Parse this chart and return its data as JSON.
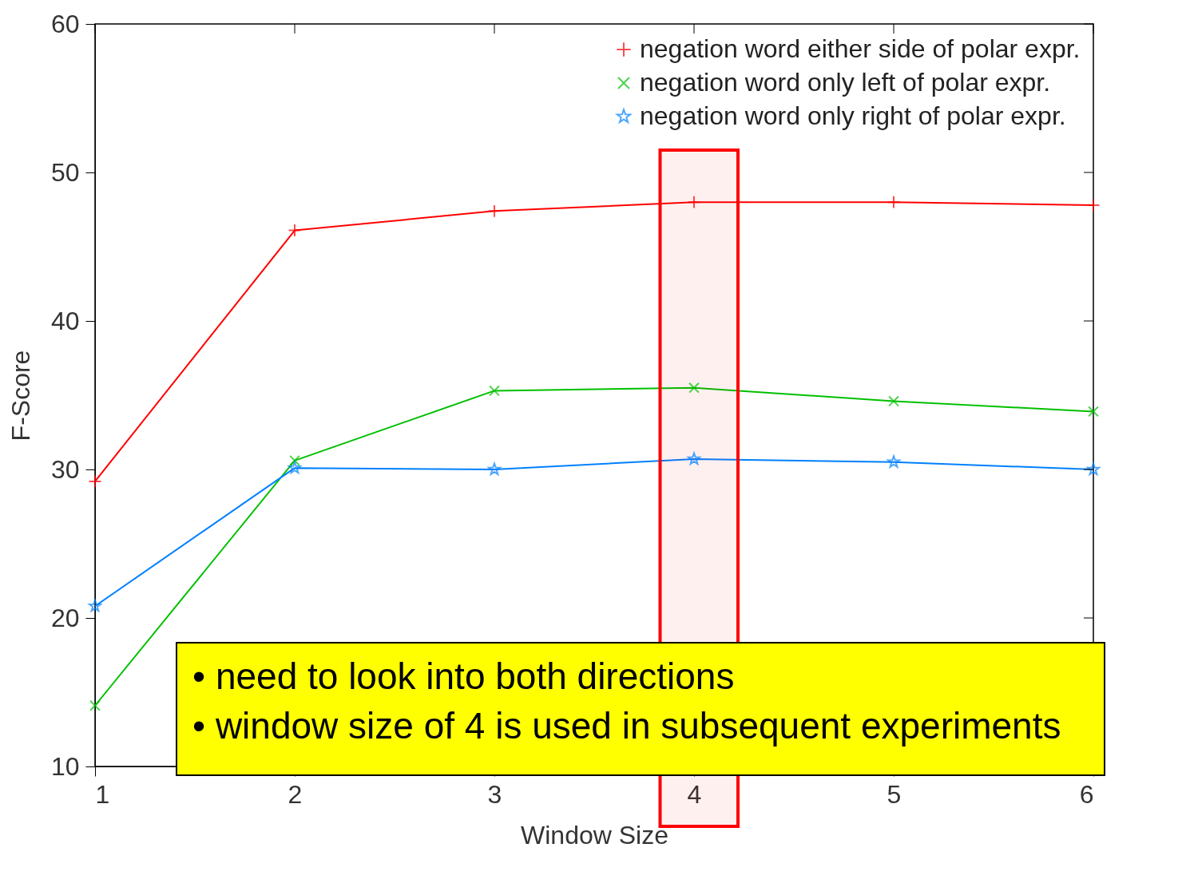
{
  "chart_data": {
    "type": "line",
    "xlabel": "Window Size",
    "ylabel": "F-Score",
    "x": [
      1,
      2,
      3,
      4,
      5,
      6
    ],
    "series": [
      {
        "name": "negation word either side of polar expr.",
        "color": "#ff0000",
        "marker": "cross",
        "values": [
          29.2,
          46.1,
          47.4,
          48.0,
          48.0,
          47.8
        ]
      },
      {
        "name": "negation word only left of polar expr.",
        "color": "#00c000",
        "marker": "x",
        "values": [
          14.1,
          30.6,
          35.3,
          35.5,
          34.6,
          33.9
        ]
      },
      {
        "name": "negation word only right of polar expr.",
        "color": "#0080ff",
        "marker": "star",
        "values": [
          20.8,
          30.1,
          30.0,
          30.7,
          30.5,
          30.0
        ]
      }
    ],
    "xlim": [
      1,
      6
    ],
    "xticks": [
      1,
      2,
      3,
      4,
      5,
      6
    ],
    "ylim": [
      10,
      60
    ],
    "yticks": [
      10,
      20,
      30,
      40,
      50,
      60
    ],
    "grid": false,
    "legend": "top right",
    "bands": [
      {
        "axis": "x",
        "from": 3.83,
        "to": 4.22,
        "color": "#ff0000"
      }
    ],
    "annotations": [
      "• need to look into both directions",
      "• window size of 4 is used in subsequent experiments"
    ]
  }
}
